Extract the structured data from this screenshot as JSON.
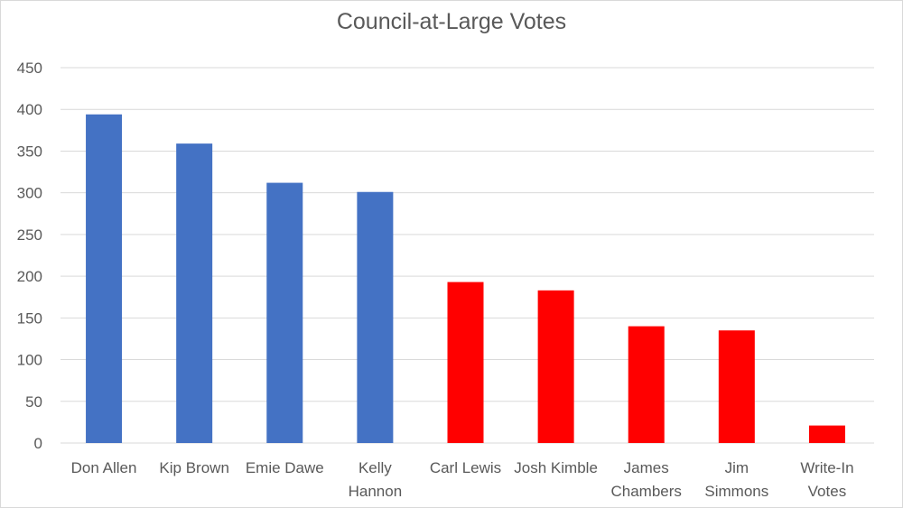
{
  "chart_data": {
    "type": "bar",
    "title": "Council-at-Large Votes",
    "xlabel": "",
    "ylabel": "",
    "ylim": [
      0,
      450
    ],
    "yticks": [
      0,
      50,
      100,
      150,
      200,
      250,
      300,
      350,
      400,
      450
    ],
    "grid": true,
    "categories": [
      [
        "Don Allen"
      ],
      [
        "Kip Brown"
      ],
      [
        "Emie Dawe"
      ],
      [
        "Kelly",
        "Hannon"
      ],
      [
        "Carl Lewis"
      ],
      [
        "Josh Kimble"
      ],
      [
        "James",
        "Chambers"
      ],
      [
        "Jim",
        "Simmons"
      ],
      [
        "Write-In",
        "Votes"
      ]
    ],
    "values": [
      394,
      359,
      312,
      301,
      193,
      183,
      140,
      135,
      21
    ],
    "bar_colors": [
      "#4472c4",
      "#4472c4",
      "#4472c4",
      "#4472c4",
      "#ff0000",
      "#ff0000",
      "#ff0000",
      "#ff0000",
      "#ff0000"
    ],
    "colors": {
      "grid": "#d9d9d9",
      "text": "#595959"
    }
  }
}
